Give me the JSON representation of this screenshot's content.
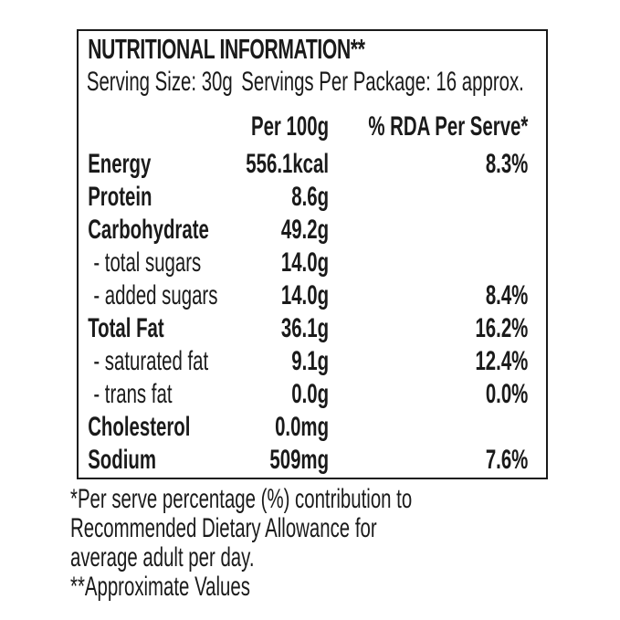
{
  "colors": {
    "text": "#1a1a1a",
    "background": "#ffffff",
    "border": "#1a1a1a"
  },
  "label": {
    "title": "NUTRITIONAL INFORMATION**",
    "serving": {
      "size": "Serving Size: 30g",
      "per_package": "Servings Per Package: 16 approx."
    },
    "columns": {
      "per_100g": "Per 100g",
      "rda_per_serve": "% RDA Per Serve*"
    },
    "rows": [
      {
        "name": "Energy",
        "sub": false,
        "per_100g": "556.1kcal",
        "rda_per_serve": "8.3%"
      },
      {
        "name": "Protein",
        "sub": false,
        "per_100g": "8.6g",
        "rda_per_serve": ""
      },
      {
        "name": "Carbohydrate",
        "sub": false,
        "per_100g": "49.2g",
        "rda_per_serve": ""
      },
      {
        "name": "- total sugars",
        "sub": true,
        "per_100g": "14.0g",
        "rda_per_serve": ""
      },
      {
        "name": "- added sugars",
        "sub": true,
        "per_100g": "14.0g",
        "rda_per_serve": "8.4%"
      },
      {
        "name": "Total Fat",
        "sub": false,
        "per_100g": "36.1g",
        "rda_per_serve": "16.2%"
      },
      {
        "name": "- saturated fat",
        "sub": true,
        "per_100g": "9.1g",
        "rda_per_serve": "12.4%"
      },
      {
        "name": "- trans fat",
        "sub": true,
        "per_100g": "0.0g",
        "rda_per_serve": "0.0%"
      },
      {
        "name": "Cholesterol",
        "sub": false,
        "per_100g": "0.0mg",
        "rda_per_serve": ""
      },
      {
        "name": "Sodium",
        "sub": false,
        "per_100g": "509mg",
        "rda_per_serve": "7.6%"
      }
    ],
    "footnotes": [
      "*Per serve percentage (%) contribution to",
      "Recommended Dietary Allowance for",
      "average adult per day.",
      "**Approximate Values"
    ]
  }
}
